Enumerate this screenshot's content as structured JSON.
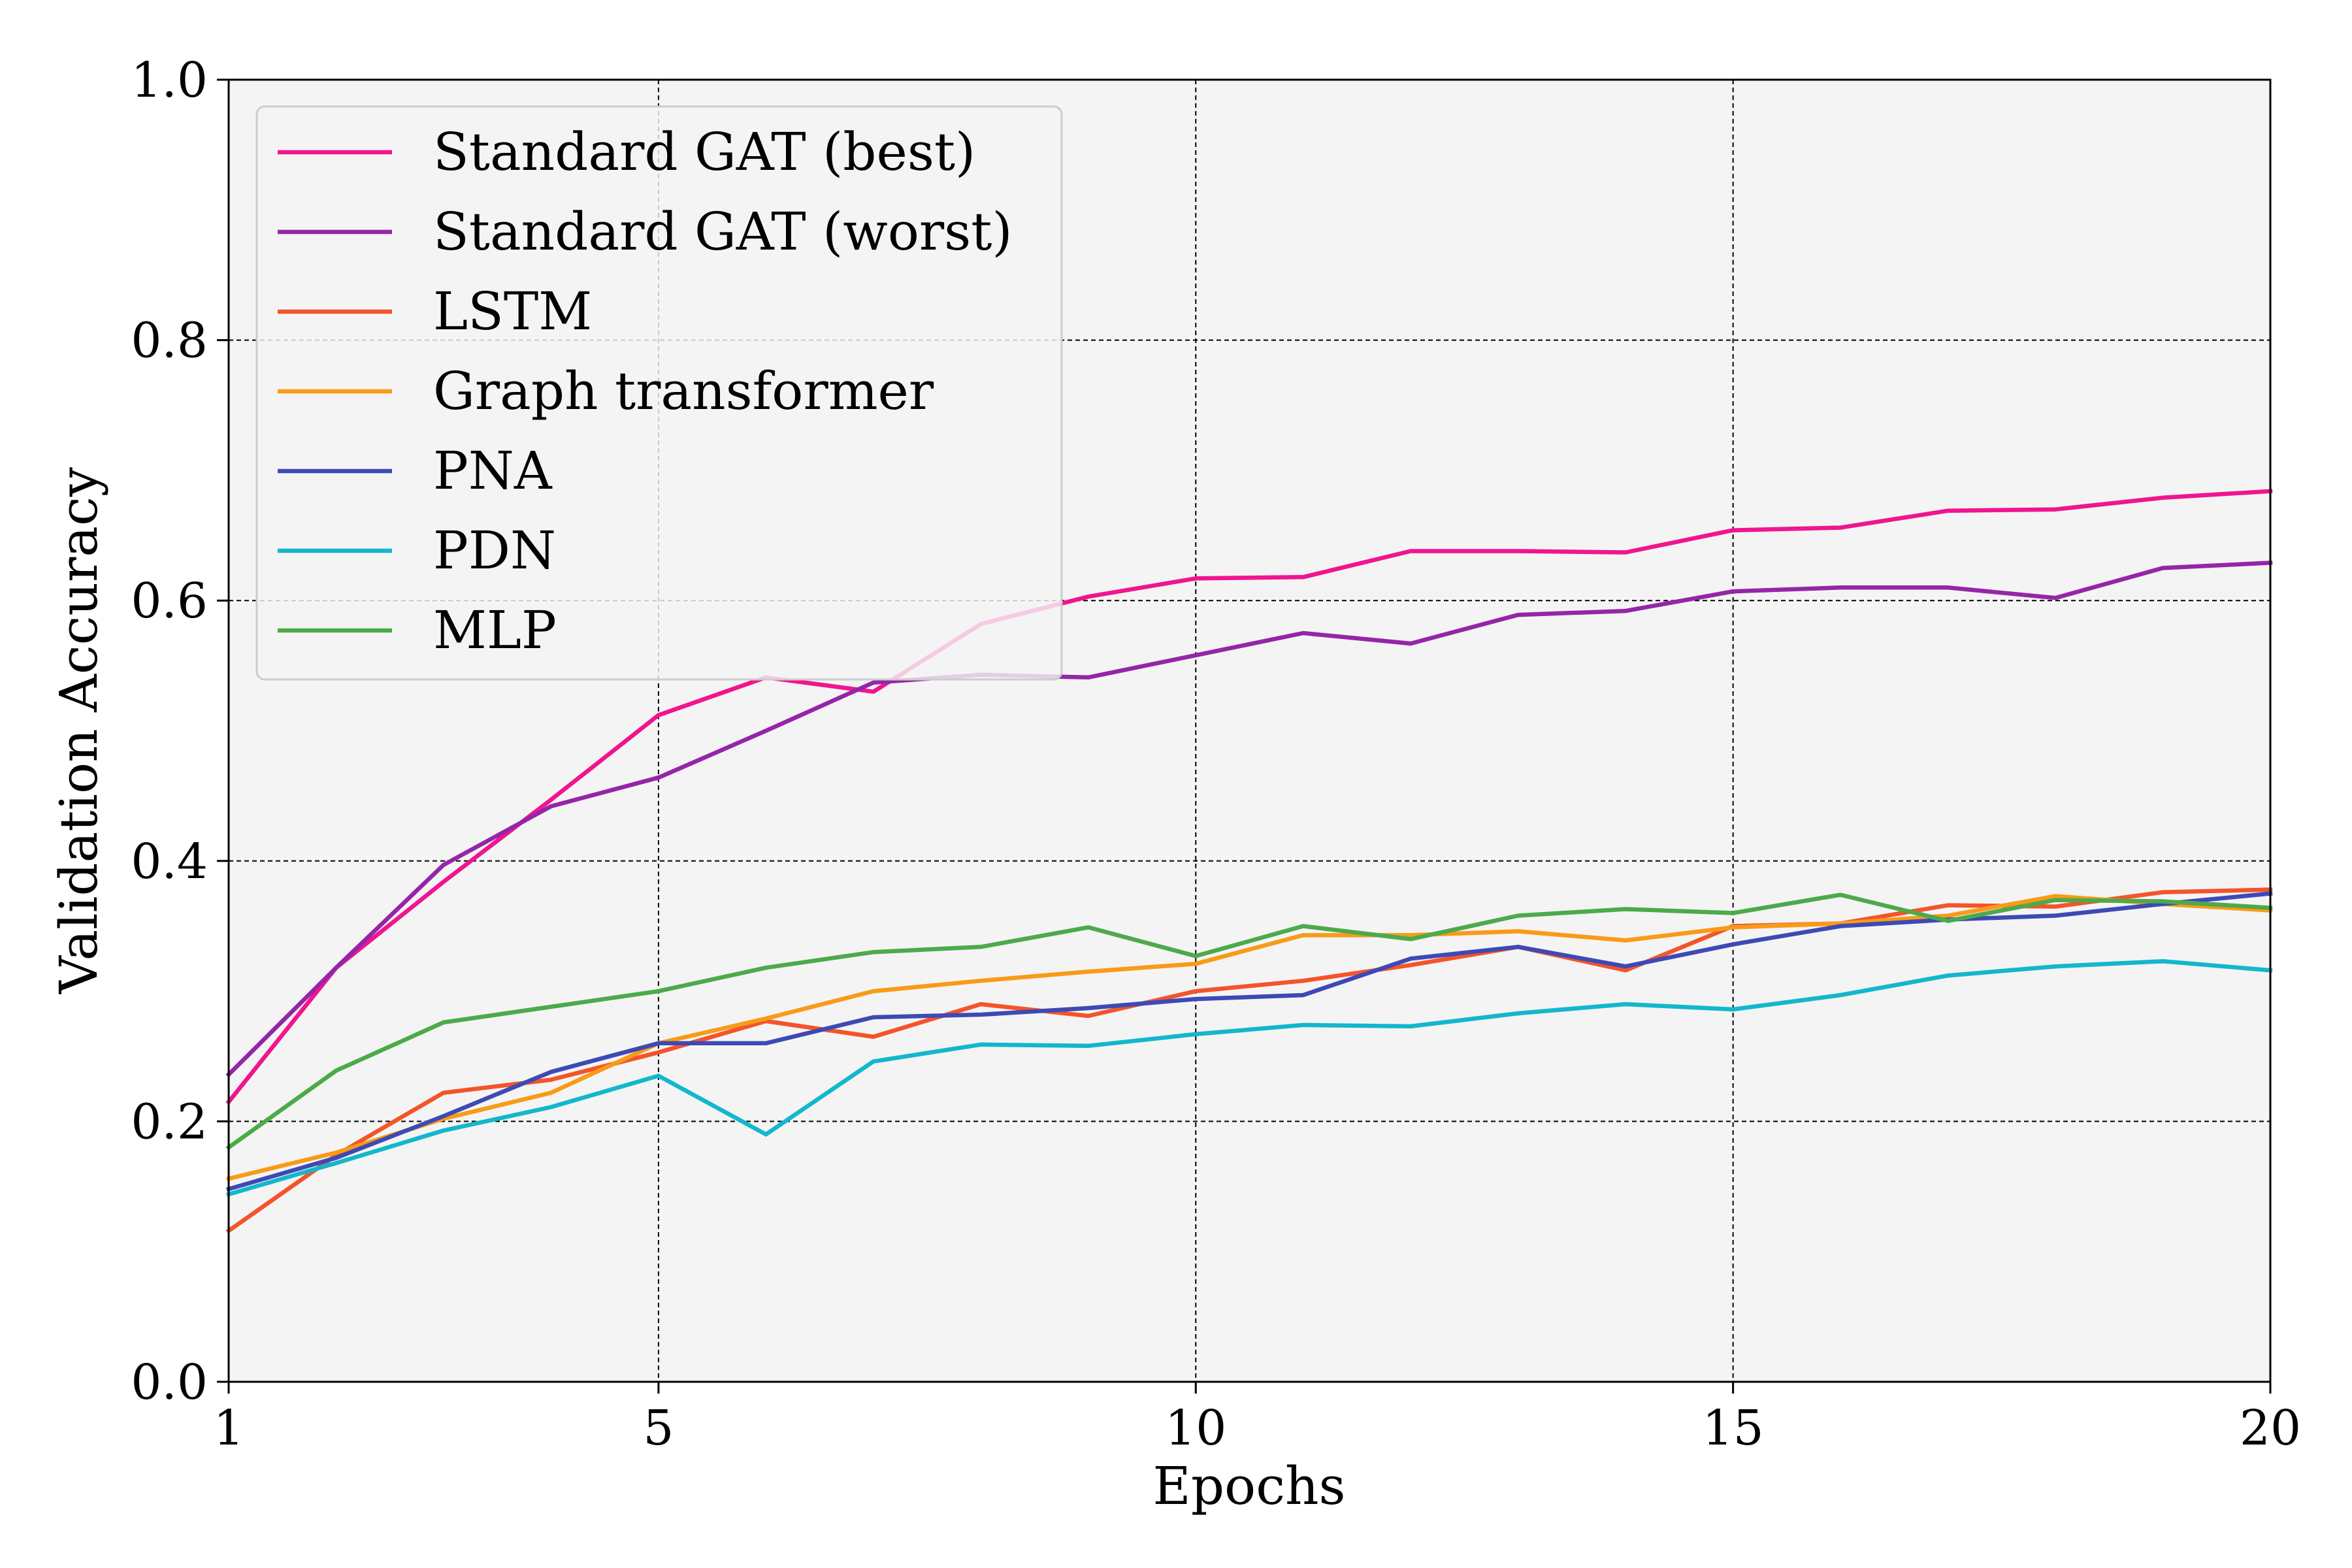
{
  "chart_data": {
    "type": "line",
    "xlabel": "Epochs",
    "ylabel": "Validation Accuracy",
    "xlim": [
      1,
      20
    ],
    "ylim": [
      0.0,
      1.0
    ],
    "xticks": [
      1,
      5,
      10,
      15,
      20
    ],
    "xtick_labels": [
      "1",
      "5",
      "10",
      "15",
      "20"
    ],
    "yticks": [
      0.0,
      0.2,
      0.4,
      0.6,
      0.8,
      1.0
    ],
    "ytick_labels": [
      "0.0",
      "0.2",
      "0.4",
      "0.6",
      "0.8",
      "1.0"
    ],
    "grid": true,
    "legend_position": "top-left",
    "background": "#f4f4f4",
    "x": [
      1,
      2,
      3,
      4,
      5,
      6,
      7,
      8,
      9,
      10,
      11,
      12,
      13,
      14,
      15,
      16,
      17,
      18,
      19,
      20
    ],
    "series": [
      {
        "name": "Standard GAT (best)",
        "color": "#f0158f",
        "values": [
          0.215,
          0.318,
          0.384,
          0.447,
          0.512,
          0.541,
          0.53,
          0.582,
          0.603,
          0.617,
          0.618,
          0.638,
          0.638,
          0.637,
          0.654,
          0.656,
          0.669,
          0.67,
          0.679,
          0.684
        ]
      },
      {
        "name": "Standard GAT (worst)",
        "color": "#9525a8",
        "values": [
          0.236,
          0.318,
          0.397,
          0.442,
          0.464,
          0.5,
          0.537,
          0.543,
          0.541,
          0.558,
          0.575,
          0.567,
          0.589,
          0.592,
          0.607,
          0.61,
          0.61,
          0.602,
          0.625,
          0.629
        ]
      },
      {
        "name": "LSTM",
        "color": "#f4542a",
        "values": [
          0.116,
          0.174,
          0.222,
          0.232,
          0.253,
          0.277,
          0.265,
          0.29,
          0.281,
          0.3,
          0.308,
          0.32,
          0.334,
          0.316,
          0.35,
          0.352,
          0.366,
          0.365,
          0.376,
          0.378
        ]
      },
      {
        "name": "Graph transformer",
        "color": "#f89b18",
        "values": [
          0.156,
          0.176,
          0.202,
          0.222,
          0.26,
          0.279,
          0.3,
          0.308,
          0.315,
          0.321,
          0.343,
          0.343,
          0.346,
          0.339,
          0.349,
          0.352,
          0.358,
          0.373,
          0.367,
          0.362
        ]
      },
      {
        "name": "PNA",
        "color": "#3d4ab5",
        "values": [
          0.148,
          0.172,
          0.204,
          0.238,
          0.26,
          0.26,
          0.28,
          0.282,
          0.287,
          0.294,
          0.297,
          0.325,
          0.334,
          0.319,
          0.336,
          0.35,
          0.355,
          0.358,
          0.367,
          0.375
        ]
      },
      {
        "name": "PDN",
        "color": "#13b7cc",
        "values": [
          0.144,
          0.168,
          0.193,
          0.211,
          0.235,
          0.19,
          0.246,
          0.259,
          0.258,
          0.267,
          0.274,
          0.273,
          0.283,
          0.29,
          0.286,
          0.297,
          0.312,
          0.319,
          0.323,
          0.316
        ]
      },
      {
        "name": "MLP",
        "color": "#4caa4a",
        "values": [
          0.18,
          0.239,
          0.276,
          0.288,
          0.3,
          0.318,
          0.33,
          0.334,
          0.349,
          0.327,
          0.35,
          0.34,
          0.358,
          0.363,
          0.36,
          0.374,
          0.354,
          0.37,
          0.369,
          0.364
        ]
      }
    ]
  }
}
